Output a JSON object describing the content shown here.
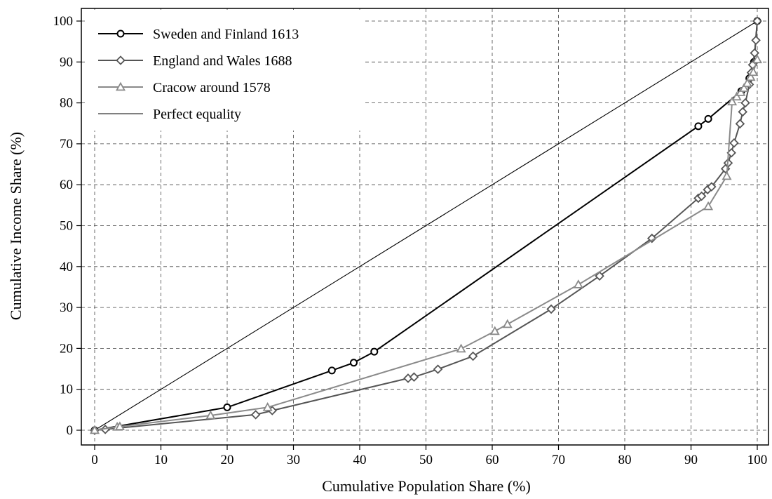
{
  "chart_data": {
    "type": "line",
    "title": "",
    "xlabel": "Cumulative Population Share (%)",
    "ylabel": "Cumulative Income Share (%)",
    "xlim": [
      0,
      100
    ],
    "ylim": [
      0,
      100
    ],
    "xticks": [
      "0",
      "10",
      "20",
      "30",
      "40",
      "50",
      "60",
      "70",
      "80",
      "90",
      "100"
    ],
    "yticks": [
      "0",
      "10",
      "20",
      "30",
      "40",
      "50",
      "60",
      "70",
      "80",
      "90",
      "100"
    ],
    "grid": true,
    "legend_position": "top-left",
    "series": [
      {
        "name": "Sweden and Finland 1613",
        "marker": "circle",
        "color": "#000000",
        "x": [
          0,
          20,
          35.8,
          39.1,
          42.2,
          91.1,
          92.6,
          97.6,
          98.8,
          99.5,
          100
        ],
        "y": [
          0,
          5.6,
          14.6,
          16.5,
          19.2,
          74.3,
          76.1,
          82.9,
          86,
          90,
          100
        ]
      },
      {
        "name": "England and Wales 1688",
        "marker": "diamond",
        "color": "#555555",
        "x": [
          0,
          1.6,
          24.3,
          26.8,
          47.3,
          48.2,
          51.8,
          57.1,
          68.9,
          76.2,
          84.1,
          91.1,
          91.6,
          92.5,
          93.1,
          95.2,
          95.6,
          96.1,
          96.5,
          97.4,
          97.8,
          98.2,
          98.8,
          99.1,
          99.3,
          99.6,
          99.8,
          100
        ],
        "y": [
          0,
          0.2,
          3.8,
          4.8,
          12.7,
          13,
          14.9,
          18.1,
          29.6,
          37.7,
          46.9,
          56.7,
          57.2,
          58.8,
          59.5,
          63.9,
          65.3,
          67.8,
          70.2,
          74.9,
          77.8,
          80,
          84.5,
          87.4,
          89.3,
          92.2,
          95.3,
          100
        ]
      },
      {
        "name": "Cracow around 1578",
        "marker": "triangle",
        "color": "#8a8a8a",
        "x": [
          0,
          3.4,
          3.8,
          17.5,
          26.1,
          55.3,
          60.4,
          62.3,
          73,
          92.6,
          95.4,
          96.2,
          96.9,
          97.5,
          98,
          98.5,
          99,
          99.4,
          100
        ],
        "y": [
          0,
          0.8,
          0.9,
          3.6,
          5.6,
          19.9,
          24.2,
          25.9,
          35.6,
          54.7,
          62.1,
          80.3,
          81.5,
          82.6,
          83.6,
          84.8,
          86.3,
          87.5,
          90.6
        ]
      },
      {
        "name": "Perfect equality",
        "marker": "none",
        "color": "#000000",
        "x": [
          0,
          100
        ],
        "y": [
          0,
          100
        ]
      }
    ]
  }
}
